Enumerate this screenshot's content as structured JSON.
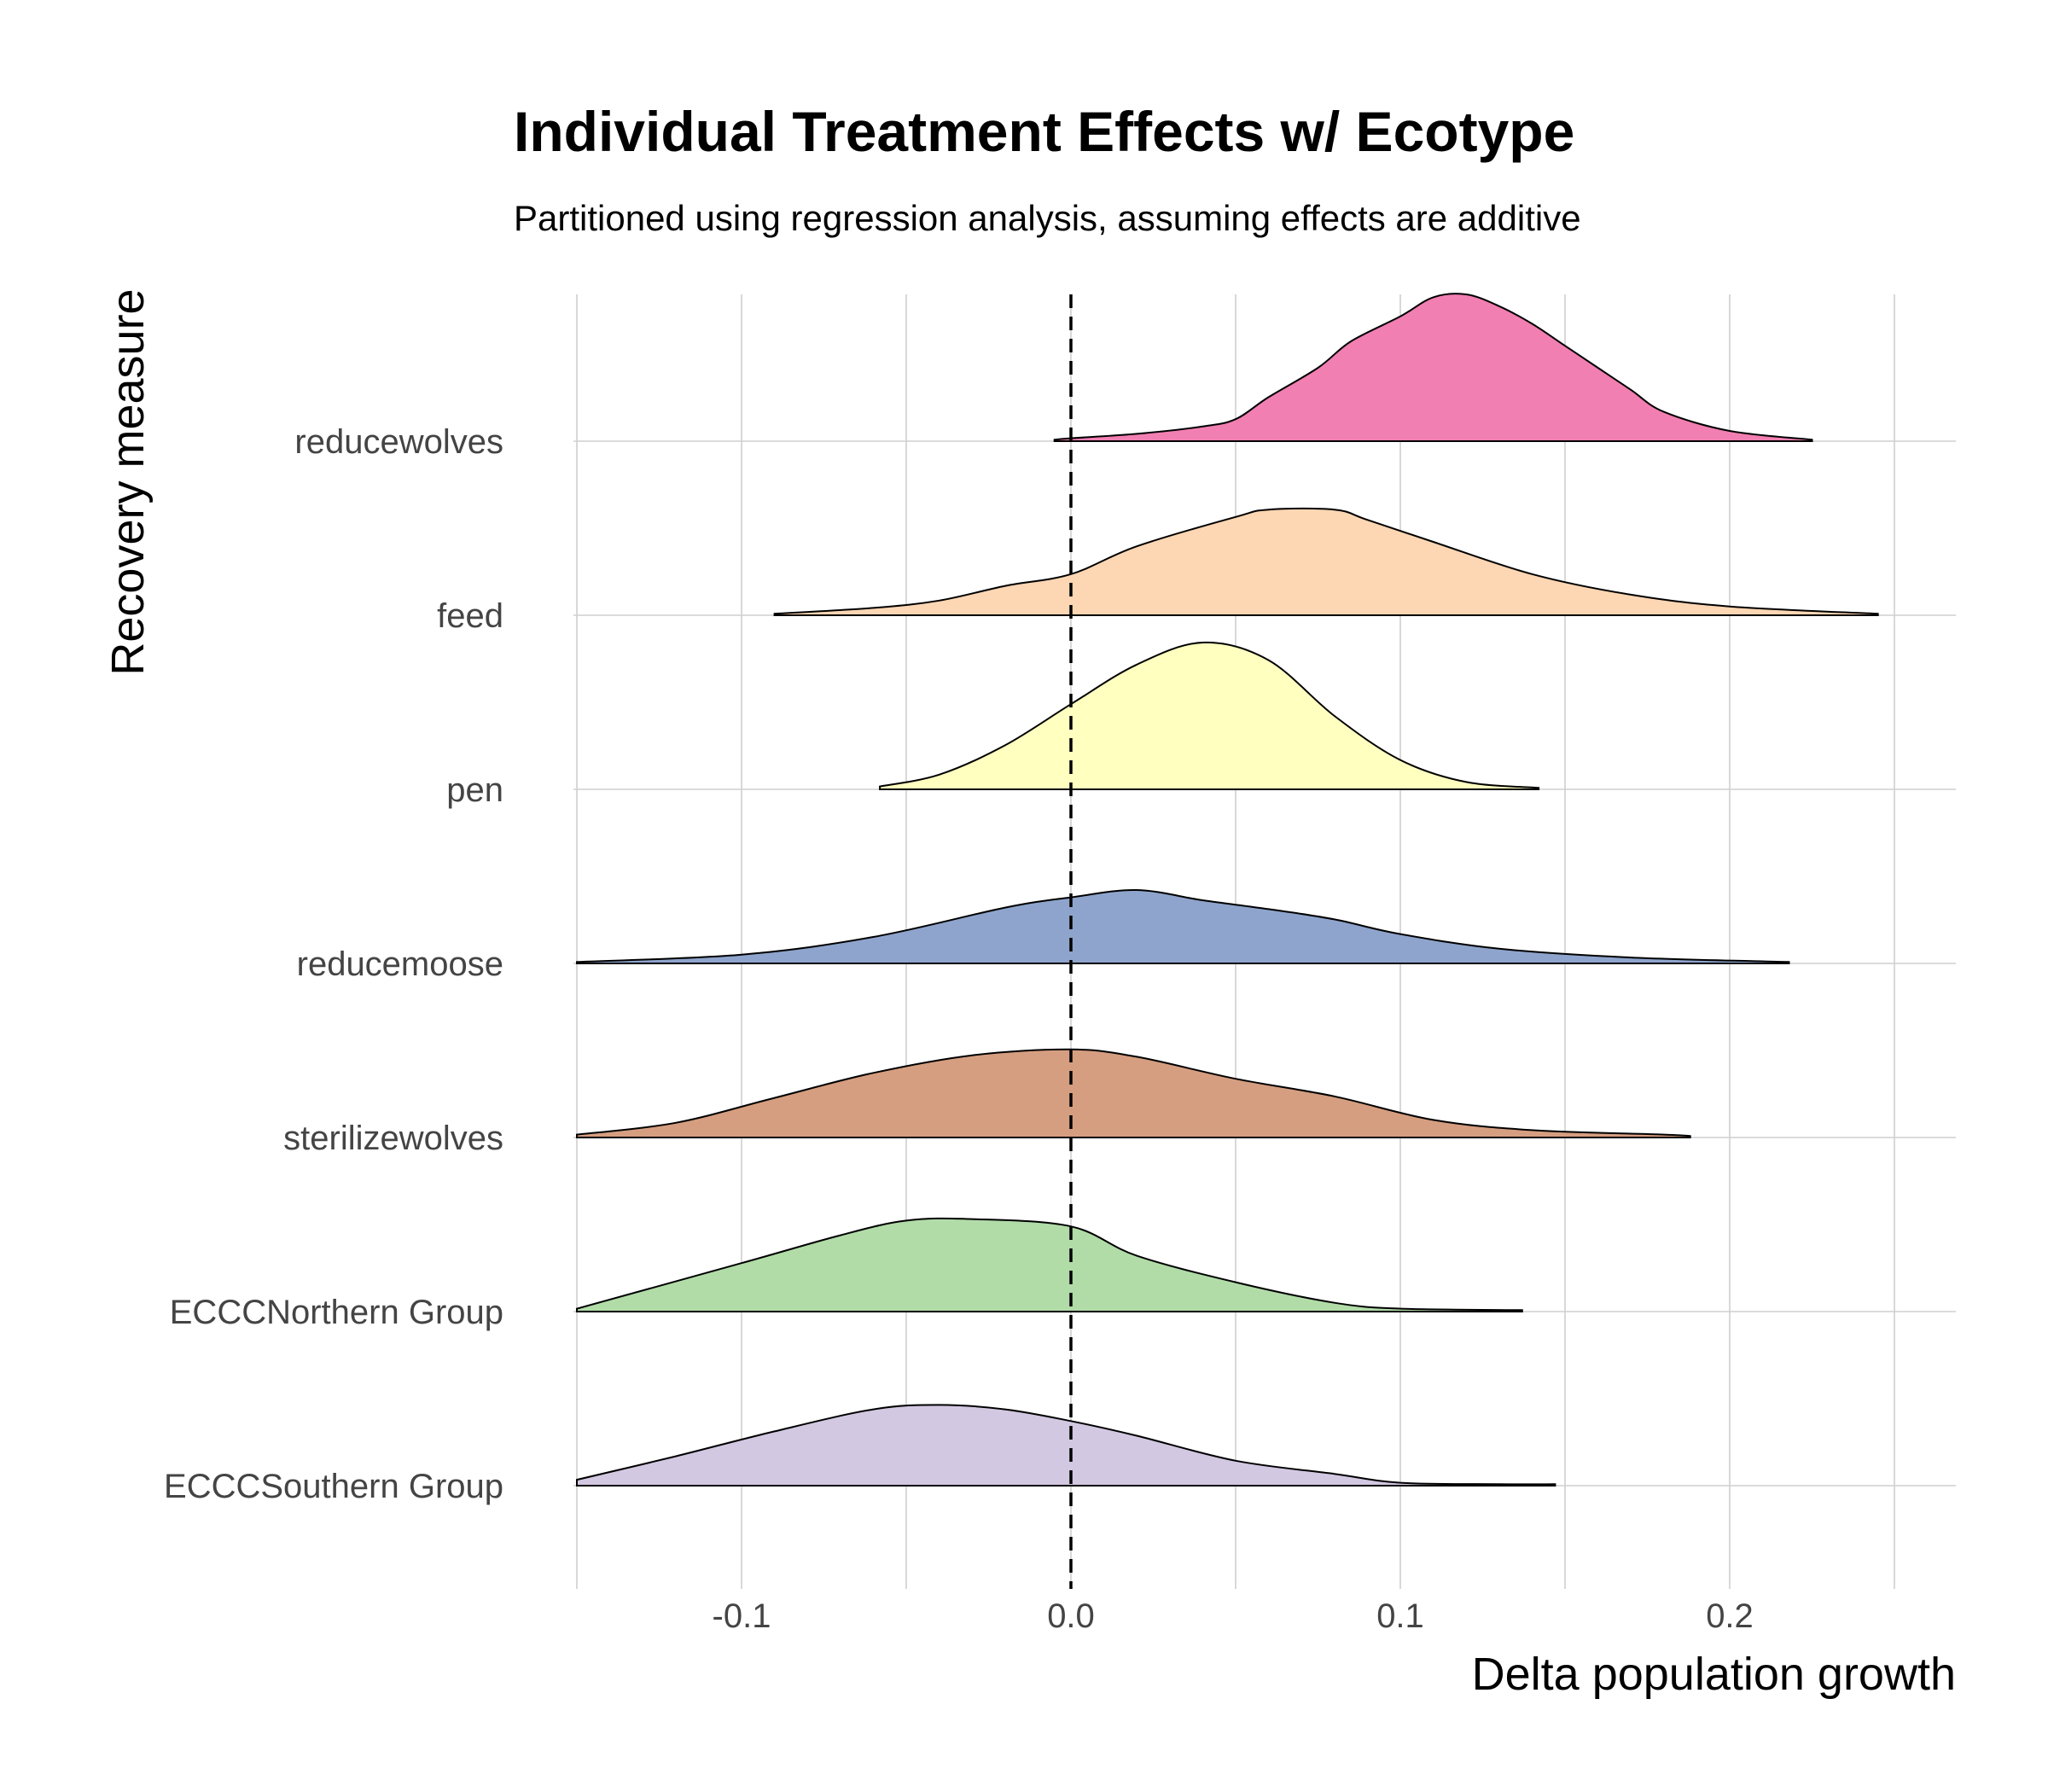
{
  "chart_data": {
    "type": "ridgeline",
    "title": "Individual Treatment Effects w/ Ecotype",
    "subtitle": "Partitioned using regression analysis, assuming effects are additive",
    "xlabel": "Delta population growth",
    "ylabel": "Recovery measure",
    "xlim": [
      -0.15,
      0.25
    ],
    "x_ticks": [
      -0.1,
      0.0,
      0.1,
      0.2
    ],
    "x_tick_labels": [
      "-0.1",
      "0.0",
      "0.1",
      "0.2"
    ],
    "reference_line": {
      "x": 0.0,
      "style": "dashed"
    },
    "grid": true,
    "legend": "none",
    "series": [
      {
        "name": "reducewolves",
        "color": "#f17fb2",
        "x": [
          -0.005,
          0.0,
          0.02,
          0.04,
          0.05,
          0.06,
          0.075,
          0.085,
          0.1,
          0.11,
          0.12,
          0.13,
          0.14,
          0.15,
          0.16,
          0.17,
          0.18,
          0.2,
          0.225
        ],
        "density": [
          0.01,
          0.02,
          0.05,
          0.1,
          0.15,
          0.3,
          0.5,
          0.68,
          0.85,
          0.98,
          1.0,
          0.92,
          0.8,
          0.65,
          0.5,
          0.35,
          0.2,
          0.07,
          0.01
        ]
      },
      {
        "name": "feed",
        "color": "#fdd6b3",
        "x": [
          -0.09,
          -0.06,
          -0.04,
          -0.02,
          0.0,
          0.02,
          0.05,
          0.06,
          0.08,
          0.09,
          0.11,
          0.14,
          0.17,
          0.2,
          0.245
        ],
        "density": [
          0.01,
          0.05,
          0.1,
          0.2,
          0.28,
          0.47,
          0.67,
          0.72,
          0.72,
          0.65,
          0.5,
          0.28,
          0.14,
          0.06,
          0.01
        ]
      },
      {
        "name": "pen",
        "color": "#ffffc0",
        "x": [
          -0.058,
          -0.04,
          -0.02,
          0.0,
          0.02,
          0.04,
          0.06,
          0.08,
          0.1,
          0.12,
          0.142
        ],
        "density": [
          0.02,
          0.1,
          0.3,
          0.58,
          0.85,
          1.0,
          0.88,
          0.5,
          0.2,
          0.05,
          0.01
        ]
      },
      {
        "name": "reducemoose",
        "color": "#8ea4cc",
        "x": [
          -0.15,
          -0.1,
          -0.06,
          -0.02,
          0.0,
          0.02,
          0.04,
          0.06,
          0.08,
          0.1,
          0.13,
          0.17,
          0.218
        ],
        "density": [
          0.01,
          0.06,
          0.18,
          0.38,
          0.45,
          0.5,
          0.43,
          0.37,
          0.3,
          0.2,
          0.1,
          0.04,
          0.01
        ]
      },
      {
        "name": "sterilizewolves",
        "color": "#d59e80",
        "x": [
          -0.15,
          -0.12,
          -0.09,
          -0.06,
          -0.03,
          0.0,
          0.02,
          0.05,
          0.08,
          0.11,
          0.14,
          0.18,
          0.188
        ],
        "density": [
          0.02,
          0.1,
          0.27,
          0.44,
          0.56,
          0.6,
          0.55,
          0.4,
          0.28,
          0.12,
          0.05,
          0.02,
          0.01
        ]
      },
      {
        "name": "ECCCNorthern Group",
        "color": "#b1dca8",
        "x": [
          -0.15,
          -0.1,
          -0.07,
          -0.05,
          -0.03,
          0.0,
          0.02,
          0.05,
          0.08,
          0.1,
          0.137
        ],
        "density": [
          0.02,
          0.33,
          0.52,
          0.62,
          0.63,
          0.58,
          0.38,
          0.2,
          0.06,
          0.02,
          0.01
        ]
      },
      {
        "name": "ECCCSouthern Group",
        "color": "#d3c8e2",
        "x": [
          -0.15,
          -0.12,
          -0.09,
          -0.06,
          -0.04,
          -0.02,
          0.0,
          0.02,
          0.05,
          0.08,
          0.1,
          0.13,
          0.147
        ],
        "density": [
          0.04,
          0.2,
          0.37,
          0.52,
          0.55,
          0.52,
          0.44,
          0.34,
          0.17,
          0.08,
          0.02,
          0.01,
          0.01
        ]
      }
    ]
  }
}
